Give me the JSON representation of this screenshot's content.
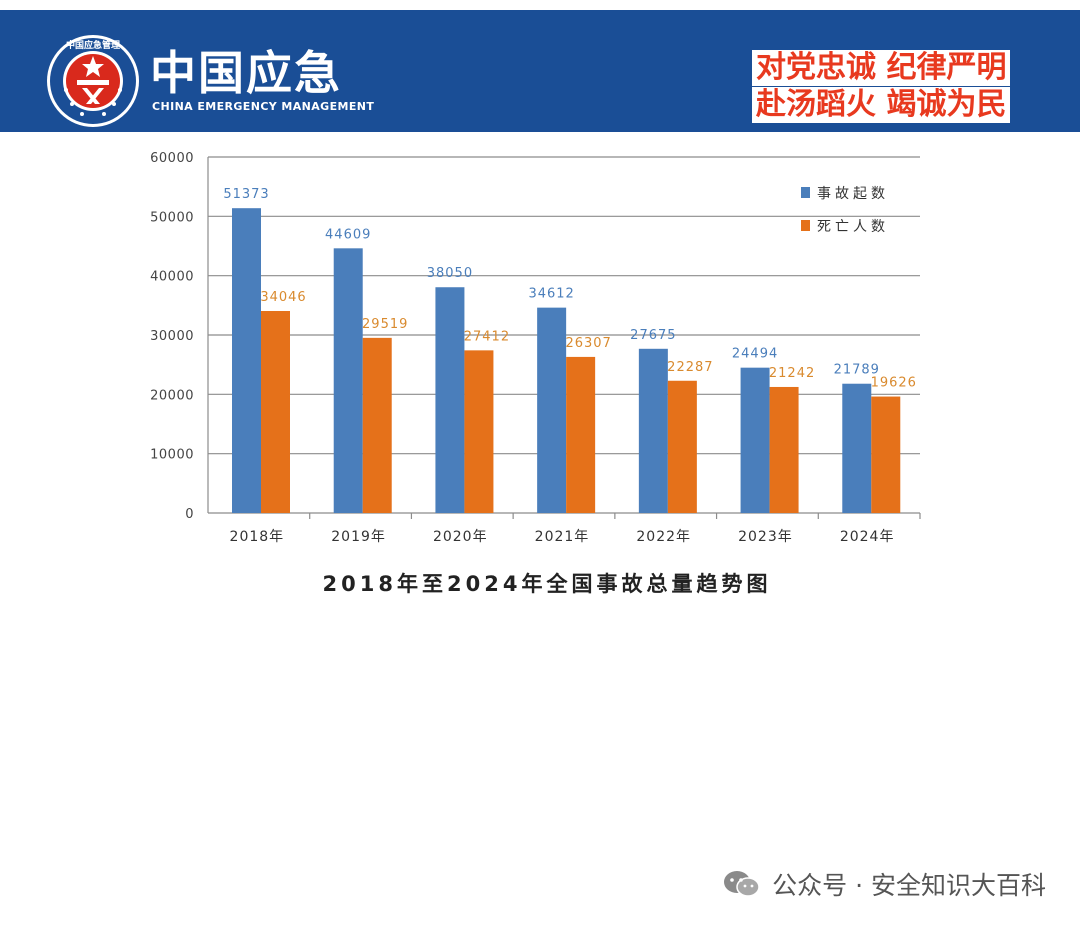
{
  "header": {
    "brand_cn": "中国应急",
    "brand_en": "CHINA EMERGENCY MANAGEMENT",
    "logo_ring_text": "中国应急管理",
    "slogan_line1": "对党忠诚  纪律严明",
    "slogan_line2": "赴汤蹈火  竭诚为民",
    "colors": {
      "banner": "#1a4e96",
      "slogan": "#e8391f",
      "logo_red": "#d9291c"
    }
  },
  "chart_data": {
    "type": "bar",
    "title": "2018年至2024年全国事故总量趋势图",
    "categories": [
      "2018年",
      "2019年",
      "2020年",
      "2021年",
      "2022年",
      "2023年",
      "2024年"
    ],
    "series": [
      {
        "name": "事故起数",
        "color": "#4a7ebb",
        "label_color": "#4a7ebb",
        "values": [
          51373,
          44609,
          38050,
          34612,
          27675,
          24494,
          21789
        ]
      },
      {
        "name": "死亡人数",
        "color": "#e5711a",
        "label_color": "#d98a2e",
        "values": [
          34046,
          29519,
          27412,
          26307,
          22287,
          21242,
          19626
        ]
      }
    ],
    "yticks": [
      "0",
      "10000",
      "20000",
      "30000",
      "40000",
      "50000",
      "60000"
    ],
    "ylim": [
      0,
      60000
    ],
    "grid": true,
    "legend_position": "top-right"
  },
  "watermark": {
    "icon": "wechat-icon",
    "text": "公众号 · 安全知识大百科"
  }
}
